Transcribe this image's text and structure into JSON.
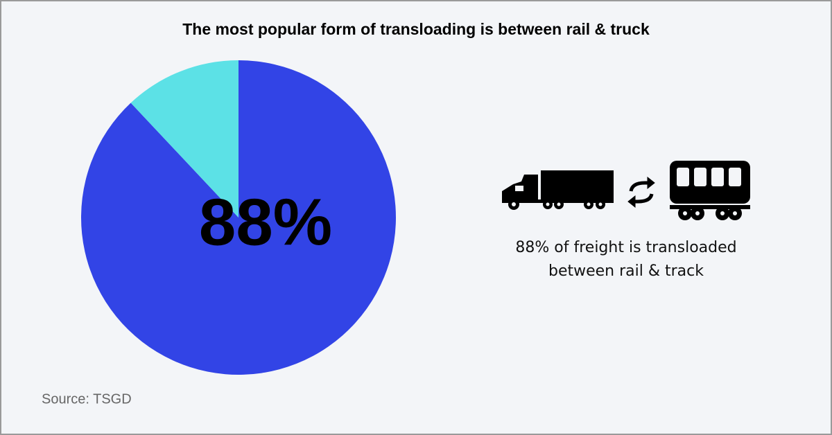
{
  "chart_data": {
    "type": "pie",
    "title": "The most popular form of transloading is between rail & truck",
    "values": [
      88,
      12
    ],
    "value_labels": [
      "88%",
      null
    ],
    "colors": [
      "#3244e6",
      "#5ce1e6"
    ],
    "caption": [
      "88% of freight is transloaded",
      "between rail & track"
    ],
    "source": "Source: TSGD"
  }
}
